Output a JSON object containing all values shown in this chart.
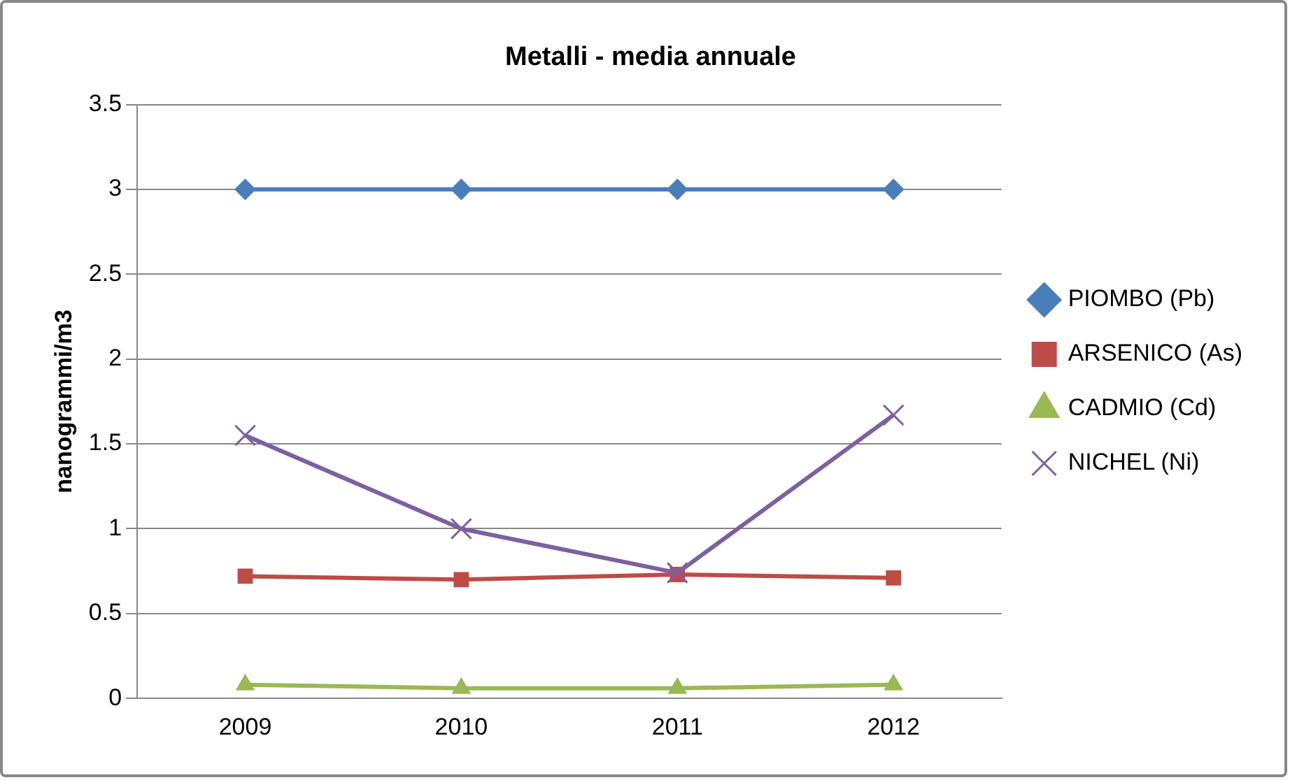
{
  "chart_data": {
    "type": "line",
    "title": "Metalli - media annuale",
    "ylabel": "nanogrammi/m3",
    "categories": [
      "2009",
      "2010",
      "2011",
      "2012"
    ],
    "series": [
      {
        "name": "PIOMBO (Pb)",
        "color": "#4a7ebb",
        "marker": "diamond",
        "values": [
          3,
          3,
          3,
          3
        ]
      },
      {
        "name": "ARSENICO (As)",
        "color": "#be4b48",
        "marker": "square",
        "values": [
          0.72,
          0.7,
          0.73,
          0.71
        ]
      },
      {
        "name": "CADMIO (Cd)",
        "color": "#98b954",
        "marker": "triangle",
        "values": [
          0.08,
          0.06,
          0.06,
          0.08
        ]
      },
      {
        "name": "NICHEL (Ni)",
        "color": "#7d60a0",
        "marker": "cross",
        "values": [
          1.55,
          1,
          0.74,
          1.67
        ]
      }
    ],
    "ylim": [
      0,
      3.5
    ],
    "yticks": [
      0,
      0.5,
      1,
      1.5,
      2,
      2.5,
      3,
      3.5
    ],
    "grid": "y",
    "legend": "right"
  }
}
